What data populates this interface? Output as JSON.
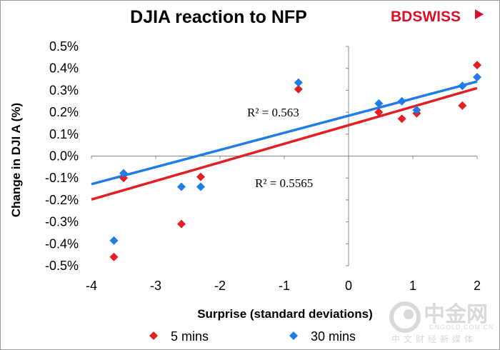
{
  "brand": {
    "name_text": "BDSWISS",
    "color": "#d8102a"
  },
  "watermark": {
    "cn_name": "中金网",
    "url": "CNGOLD.COM.CN",
    "subtitle": "中文财经新媒体",
    "color": "#d9d9d9"
  },
  "chart_data": {
    "type": "scatter",
    "title": "DJIA reaction to NFP",
    "xlabel": "Surprise (standard deviations)",
    "ylabel": "Change in DJI A (%)",
    "xlim": [
      -4,
      2
    ],
    "ylim": [
      -0.5,
      0.5
    ],
    "x_ticks": [
      -4,
      -3,
      -2,
      -1,
      0,
      1,
      2
    ],
    "x_tick_labels": [
      "-4",
      "-3",
      "-2",
      "-1",
      "0",
      "1",
      "2"
    ],
    "y_ticks": [
      0.5,
      0.4,
      0.3,
      0.2,
      0.1,
      0.0,
      -0.1,
      -0.2,
      -0.3,
      -0.4,
      -0.5
    ],
    "y_tick_labels": [
      "0.5%",
      "0.4%",
      "0.3%",
      "0.2%",
      "0.1%",
      "0.0%",
      "-0.1%",
      "-0.2%",
      "-0.3%",
      "-0.4%",
      "-0.5%"
    ],
    "grid": false,
    "legend_position": "bottom",
    "series": [
      {
        "name": "5 mins",
        "color": "#e31e24",
        "marker": "diamond",
        "points": [
          [
            -3.65,
            -0.46
          ],
          [
            -3.5,
            -0.1
          ],
          [
            -2.6,
            -0.31
          ],
          [
            -2.3,
            -0.095
          ],
          [
            -0.78,
            0.305
          ],
          [
            0.47,
            0.2
          ],
          [
            0.83,
            0.17
          ],
          [
            1.06,
            0.195
          ],
          [
            1.77,
            0.23
          ],
          [
            2.0,
            0.415
          ]
        ],
        "trendline": {
          "x": [
            -4,
            2
          ],
          "y": [
            -0.198,
            0.31
          ]
        },
        "r2_label": "R² = 0.5565"
      },
      {
        "name": "30 mins",
        "color": "#1f7ce8",
        "marker": "diamond",
        "points": [
          [
            -3.65,
            -0.385
          ],
          [
            -3.5,
            -0.078
          ],
          [
            -2.6,
            -0.14
          ],
          [
            -2.3,
            -0.14
          ],
          [
            -0.78,
            0.335
          ],
          [
            0.47,
            0.24
          ],
          [
            0.83,
            0.25
          ],
          [
            1.06,
            0.21
          ],
          [
            1.77,
            0.32
          ],
          [
            2.0,
            0.36
          ]
        ],
        "trendline": {
          "x": [
            -4,
            2
          ],
          "y": [
            -0.128,
            0.34
          ]
        },
        "r2_label": "R² = 0.563"
      }
    ]
  }
}
